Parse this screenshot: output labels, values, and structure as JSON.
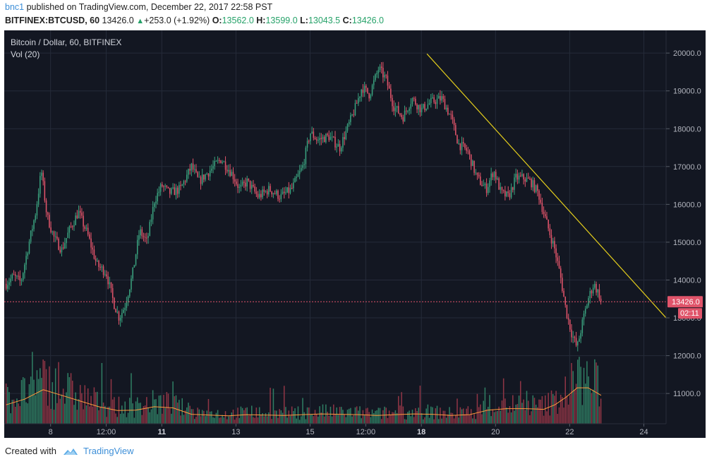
{
  "header": {
    "user": "bnc1",
    "published": " published on TradingView.com, December 22, 2017 22:58 PST",
    "symbol": "BITFINEX:BTCUSD, 60",
    "last": "13426.0",
    "change_arrow": "▲",
    "change": "+253.0 (+1.92%)",
    "o_label": "O:",
    "o_value": "13562.0",
    "h_label": "H:",
    "h_value": "13599.0",
    "l_label": "L:",
    "l_value": "13043.5",
    "c_label": "C:",
    "c_value": "13426.0"
  },
  "chart_data": {
    "type": "candlestick",
    "title": "Bitcoin / Dollar, 60, BITFINEX",
    "subtitle": "Vol (20)",
    "x_ticks": [
      {
        "label": "8",
        "day": 8.0,
        "bold": false
      },
      {
        "label": "12:00",
        "day": 9.5,
        "bold": false
      },
      {
        "label": "11",
        "day": 11.0,
        "bold": true
      },
      {
        "label": "13",
        "day": 13.0,
        "bold": false
      },
      {
        "label": "15",
        "day": 15.0,
        "bold": false
      },
      {
        "label": "12:00",
        "day": 16.5,
        "bold": false
      },
      {
        "label": "18",
        "day": 18.0,
        "bold": true
      },
      {
        "label": "20",
        "day": 20.0,
        "bold": false
      },
      {
        "label": "22",
        "day": 22.0,
        "bold": false
      },
      {
        "label": "24",
        "day": 24.0,
        "bold": false
      }
    ],
    "y_ticks": [
      "20000.0",
      "19000.0",
      "18000.0",
      "17000.0",
      "16000.0",
      "15000.0",
      "14000.0",
      "13000.0",
      "12000.0",
      "11000.0"
    ],
    "ylim": [
      10200,
      20600
    ],
    "xlim_days": [
      6.75,
      24.6
    ],
    "last_price": "13426.0",
    "countdown": "02:11",
    "price_path": [
      [
        6.8,
        13900
      ],
      [
        7.0,
        14100
      ],
      [
        7.2,
        13950
      ],
      [
        7.4,
        14900
      ],
      [
        7.6,
        15800
      ],
      [
        7.75,
        16900
      ],
      [
        7.9,
        15700
      ],
      [
        8.1,
        15100
      ],
      [
        8.3,
        14800
      ],
      [
        8.5,
        15300
      ],
      [
        8.75,
        15800
      ],
      [
        9.0,
        15200
      ],
      [
        9.25,
        14400
      ],
      [
        9.5,
        14200
      ],
      [
        9.7,
        13400
      ],
      [
        9.85,
        13000
      ],
      [
        10.0,
        13300
      ],
      [
        10.2,
        14100
      ],
      [
        10.4,
        15300
      ],
      [
        10.6,
        15000
      ],
      [
        10.8,
        16100
      ],
      [
        11.0,
        16500
      ],
      [
        11.2,
        16300
      ],
      [
        11.5,
        16400
      ],
      [
        11.8,
        17000
      ],
      [
        12.0,
        16600
      ],
      [
        12.3,
        16900
      ],
      [
        12.6,
        17200
      ],
      [
        12.9,
        16800
      ],
      [
        13.1,
        16400
      ],
      [
        13.3,
        16600
      ],
      [
        13.6,
        16200
      ],
      [
        13.9,
        16400
      ],
      [
        14.2,
        16200
      ],
      [
        14.5,
        16400
      ],
      [
        14.8,
        17000
      ],
      [
        15.0,
        17900
      ],
      [
        15.2,
        17700
      ],
      [
        15.5,
        17800
      ],
      [
        15.8,
        17500
      ],
      [
        16.0,
        18000
      ],
      [
        16.2,
        18500
      ],
      [
        16.4,
        19100
      ],
      [
        16.6,
        18900
      ],
      [
        16.85,
        19600
      ],
      [
        17.05,
        19300
      ],
      [
        17.25,
        18600
      ],
      [
        17.5,
        18300
      ],
      [
        17.75,
        18800
      ],
      [
        18.0,
        18500
      ],
      [
        18.25,
        18700
      ],
      [
        18.55,
        18800
      ],
      [
        18.8,
        18300
      ],
      [
        19.0,
        17600
      ],
      [
        19.25,
        17400
      ],
      [
        19.5,
        16700
      ],
      [
        19.75,
        16400
      ],
      [
        19.95,
        16900
      ],
      [
        20.15,
        16300
      ],
      [
        20.35,
        16200
      ],
      [
        20.55,
        16700
      ],
      [
        20.75,
        16700
      ],
      [
        20.95,
        16600
      ],
      [
        21.15,
        16300
      ],
      [
        21.35,
        15600
      ],
      [
        21.6,
        14800
      ],
      [
        21.75,
        14100
      ],
      [
        21.9,
        13200
      ],
      [
        22.05,
        12600
      ],
      [
        22.2,
        12200
      ],
      [
        22.35,
        12900
      ],
      [
        22.5,
        13500
      ],
      [
        22.65,
        13900
      ],
      [
        22.8,
        13600
      ],
      [
        22.85,
        13426
      ]
    ],
    "volume_avg_path": [
      [
        6.8,
        10700
      ],
      [
        7.3,
        10850
      ],
      [
        7.8,
        11100
      ],
      [
        8.3,
        10950
      ],
      [
        8.8,
        10800
      ],
      [
        9.3,
        10650
      ],
      [
        9.8,
        10550
      ],
      [
        10.3,
        10560
      ],
      [
        10.8,
        10650
      ],
      [
        11.3,
        10620
      ],
      [
        11.8,
        10450
      ],
      [
        12.3,
        10430
      ],
      [
        12.8,
        10410
      ],
      [
        13.3,
        10440
      ],
      [
        13.8,
        10430
      ],
      [
        14.3,
        10420
      ],
      [
        14.8,
        10440
      ],
      [
        15.3,
        10460
      ],
      [
        15.8,
        10450
      ],
      [
        16.3,
        10440
      ],
      [
        16.8,
        10420
      ],
      [
        17.3,
        10440
      ],
      [
        17.8,
        10460
      ],
      [
        18.3,
        10450
      ],
      [
        18.8,
        10420
      ],
      [
        19.3,
        10440
      ],
      [
        19.8,
        10560
      ],
      [
        20.3,
        10600
      ],
      [
        20.8,
        10600
      ],
      [
        21.3,
        10580
      ],
      [
        21.6,
        10700
      ],
      [
        21.9,
        10900
      ],
      [
        22.2,
        11150
      ],
      [
        22.5,
        11150
      ],
      [
        22.85,
        10950
      ]
    ],
    "trendline": {
      "start": [
        18.15,
        19980
      ],
      "end": [
        24.6,
        13000
      ],
      "color": "#e5cf1c"
    },
    "colors": {
      "up": "#3aa17e",
      "down": "#e0546a",
      "vol_up": "#2f7d63",
      "vol_down": "#8f3545",
      "vol_avg": "#ff9a3c",
      "bg": "#131722",
      "grid": "#252b39",
      "price_line": "#e0546a"
    }
  },
  "footer": {
    "created_with": "Created with",
    "brand": "TradingView"
  }
}
